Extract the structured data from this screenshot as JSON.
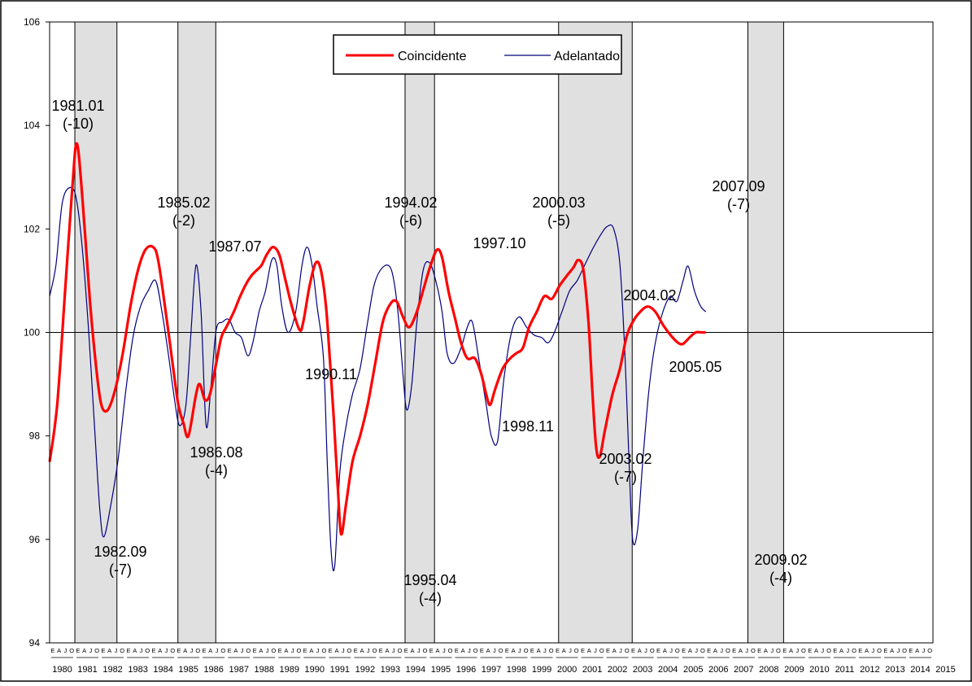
{
  "chart_data": {
    "type": "line",
    "title": "",
    "xlabel": "",
    "ylabel": "",
    "ylim": [
      94,
      106
    ],
    "yticks": [
      94,
      96,
      98,
      100,
      102,
      104,
      106
    ],
    "xlim": [
      1980.0,
      2015.0
    ],
    "years": [
      "1980",
      "1981",
      "1982",
      "1983",
      "1984",
      "1985",
      "1986",
      "1987",
      "1988",
      "1989",
      "1990",
      "1991",
      "1992",
      "1993",
      "1994",
      "1995",
      "1996",
      "1997",
      "1998",
      "1999",
      "2000",
      "2001",
      "2002",
      "2003",
      "2004",
      "2005",
      "2006",
      "2007",
      "2008",
      "2009",
      "2010",
      "2011",
      "2012",
      "2013",
      "2014",
      "2015"
    ],
    "quarter_letters": [
      "E",
      "A",
      "J",
      "O"
    ],
    "reference_line": 100,
    "recession_bands": [
      [
        1981.0,
        1982.667
      ],
      [
        1985.083,
        1986.583
      ],
      [
        1994.083,
        1995.25
      ],
      [
        2000.167,
        2003.083
      ],
      [
        2007.667,
        2009.083
      ]
    ],
    "legend": {
      "position": "top-center",
      "entries": [
        "Coincidente",
        "Adelantado"
      ]
    },
    "series": [
      {
        "name": "Coincidente",
        "color": "#ff0000",
        "points": [
          [
            1980.0,
            97.5
          ],
          [
            1980.3,
            98.6
          ],
          [
            1980.6,
            100.7
          ],
          [
            1980.9,
            102.8
          ],
          [
            1981.08,
            103.65
          ],
          [
            1981.3,
            102.6
          ],
          [
            1981.6,
            100.6
          ],
          [
            1981.85,
            99.3
          ],
          [
            1982.05,
            98.6
          ],
          [
            1982.3,
            98.5
          ],
          [
            1982.6,
            98.9
          ],
          [
            1982.9,
            99.6
          ],
          [
            1983.2,
            100.5
          ],
          [
            1983.5,
            101.2
          ],
          [
            1983.8,
            101.6
          ],
          [
            1984.1,
            101.65
          ],
          [
            1984.3,
            101.4
          ],
          [
            1984.6,
            100.4
          ],
          [
            1984.9,
            99.3
          ],
          [
            1985.1,
            98.6
          ],
          [
            1985.3,
            98.25
          ],
          [
            1985.5,
            98.0
          ],
          [
            1985.8,
            98.8
          ],
          [
            1985.95,
            99.0
          ],
          [
            1986.15,
            98.7
          ],
          [
            1986.35,
            98.8
          ],
          [
            1986.6,
            99.4
          ],
          [
            1986.8,
            99.9
          ],
          [
            1987.0,
            100.1
          ],
          [
            1987.3,
            100.4
          ],
          [
            1987.55,
            100.7
          ],
          [
            1987.8,
            100.95
          ],
          [
            1988.0,
            101.1
          ],
          [
            1988.2,
            101.2
          ],
          [
            1988.4,
            101.3
          ],
          [
            1988.6,
            101.5
          ],
          [
            1988.85,
            101.65
          ],
          [
            1989.1,
            101.5
          ],
          [
            1989.35,
            101.0
          ],
          [
            1989.6,
            100.5
          ],
          [
            1989.9,
            100.05
          ],
          [
            1990.05,
            100.2
          ],
          [
            1990.3,
            100.9
          ],
          [
            1990.55,
            101.35
          ],
          [
            1990.75,
            101.2
          ],
          [
            1990.95,
            100.5
          ],
          [
            1991.1,
            99.5
          ],
          [
            1991.25,
            98.4
          ],
          [
            1991.42,
            97.0
          ],
          [
            1991.55,
            96.1
          ],
          [
            1991.75,
            96.7
          ],
          [
            1992.0,
            97.5
          ],
          [
            1992.3,
            98.0
          ],
          [
            1992.6,
            98.6
          ],
          [
            1992.9,
            99.4
          ],
          [
            1993.2,
            100.2
          ],
          [
            1993.5,
            100.55
          ],
          [
            1993.75,
            100.6
          ],
          [
            1994.0,
            100.3
          ],
          [
            1994.25,
            100.1
          ],
          [
            1994.55,
            100.4
          ],
          [
            1994.85,
            100.9
          ],
          [
            1995.1,
            101.3
          ],
          [
            1995.35,
            101.6
          ],
          [
            1995.55,
            101.45
          ],
          [
            1995.8,
            100.8
          ],
          [
            1996.05,
            100.3
          ],
          [
            1996.3,
            99.8
          ],
          [
            1996.55,
            99.5
          ],
          [
            1996.85,
            99.5
          ],
          [
            1997.1,
            99.2
          ],
          [
            1997.3,
            98.8
          ],
          [
            1997.45,
            98.6
          ],
          [
            1997.65,
            98.9
          ],
          [
            1997.95,
            99.3
          ],
          [
            1998.25,
            99.5
          ],
          [
            1998.5,
            99.6
          ],
          [
            1998.75,
            99.7
          ],
          [
            1999.0,
            100.1
          ],
          [
            1999.3,
            100.4
          ],
          [
            1999.6,
            100.7
          ],
          [
            1999.9,
            100.65
          ],
          [
            2000.2,
            100.9
          ],
          [
            2000.5,
            101.1
          ],
          [
            2000.75,
            101.25
          ],
          [
            2000.95,
            101.4
          ],
          [
            2001.15,
            101.2
          ],
          [
            2001.35,
            100.2
          ],
          [
            2001.5,
            98.9
          ],
          [
            2001.65,
            97.8
          ],
          [
            2001.8,
            97.6
          ],
          [
            2002.0,
            98.1
          ],
          [
            2002.3,
            98.8
          ],
          [
            2002.6,
            99.3
          ],
          [
            2002.85,
            99.9
          ],
          [
            2003.1,
            100.2
          ],
          [
            2003.4,
            100.4
          ],
          [
            2003.7,
            100.5
          ],
          [
            2004.0,
            100.4
          ],
          [
            2004.3,
            100.15
          ],
          [
            2004.6,
            99.95
          ],
          [
            2004.9,
            99.8
          ],
          [
            2005.1,
            99.78
          ],
          [
            2005.35,
            99.9
          ],
          [
            2005.6,
            100.0
          ],
          [
            2005.85,
            100.0
          ],
          [
            2006.0,
            100.0
          ]
        ]
      },
      {
        "name": "Adelantado",
        "color": "#000080",
        "points": [
          [
            1980.0,
            100.7
          ],
          [
            1980.25,
            101.3
          ],
          [
            1980.5,
            102.5
          ],
          [
            1980.8,
            102.8
          ],
          [
            1981.05,
            102.6
          ],
          [
            1981.3,
            101.6
          ],
          [
            1981.55,
            100.0
          ],
          [
            1981.8,
            98.0
          ],
          [
            1982.0,
            96.5
          ],
          [
            1982.15,
            96.05
          ],
          [
            1982.4,
            96.6
          ],
          [
            1982.7,
            97.5
          ],
          [
            1983.0,
            98.8
          ],
          [
            1983.3,
            99.9
          ],
          [
            1983.6,
            100.5
          ],
          [
            1983.9,
            100.8
          ],
          [
            1984.2,
            101.0
          ],
          [
            1984.45,
            100.4
          ],
          [
            1984.7,
            99.6
          ],
          [
            1984.95,
            98.7
          ],
          [
            1985.15,
            98.2
          ],
          [
            1985.4,
            98.6
          ],
          [
            1985.6,
            100.0
          ],
          [
            1985.8,
            101.3
          ],
          [
            1986.0,
            100.4
          ],
          [
            1986.2,
            98.2
          ],
          [
            1986.4,
            99.0
          ],
          [
            1986.6,
            100.05
          ],
          [
            1986.85,
            100.2
          ],
          [
            1987.1,
            100.25
          ],
          [
            1987.35,
            100.0
          ],
          [
            1987.6,
            99.9
          ],
          [
            1987.85,
            99.55
          ],
          [
            1988.05,
            99.8
          ],
          [
            1988.3,
            100.4
          ],
          [
            1988.55,
            100.8
          ],
          [
            1988.8,
            101.4
          ],
          [
            1989.0,
            101.3
          ],
          [
            1989.2,
            100.5
          ],
          [
            1989.45,
            100.0
          ],
          [
            1989.75,
            100.4
          ],
          [
            1990.0,
            101.3
          ],
          [
            1990.2,
            101.65
          ],
          [
            1990.4,
            101.3
          ],
          [
            1990.6,
            100.5
          ],
          [
            1990.85,
            99.5
          ],
          [
            1991.0,
            97.5
          ],
          [
            1991.15,
            95.8
          ],
          [
            1991.3,
            95.5
          ],
          [
            1991.5,
            97.3
          ],
          [
            1991.75,
            98.2
          ],
          [
            1992.0,
            98.8
          ],
          [
            1992.3,
            99.3
          ],
          [
            1992.6,
            100.2
          ],
          [
            1992.85,
            100.9
          ],
          [
            1993.1,
            101.2
          ],
          [
            1993.4,
            101.3
          ],
          [
            1993.6,
            101.1
          ],
          [
            1993.8,
            100.4
          ],
          [
            1994.0,
            99.2
          ],
          [
            1994.15,
            98.5
          ],
          [
            1994.35,
            99.0
          ],
          [
            1994.55,
            100.2
          ],
          [
            1994.8,
            101.2
          ],
          [
            1995.05,
            101.35
          ],
          [
            1995.3,
            101.0
          ],
          [
            1995.55,
            100.4
          ],
          [
            1995.75,
            99.6
          ],
          [
            1996.0,
            99.4
          ],
          [
            1996.3,
            99.7
          ],
          [
            1996.55,
            100.1
          ],
          [
            1996.75,
            100.2
          ],
          [
            1997.0,
            99.5
          ],
          [
            1997.3,
            98.6
          ],
          [
            1997.5,
            98.0
          ],
          [
            1997.75,
            97.9
          ],
          [
            1998.0,
            99.1
          ],
          [
            1998.3,
            100.0
          ],
          [
            1998.6,
            100.3
          ],
          [
            1998.9,
            100.1
          ],
          [
            1999.2,
            99.95
          ],
          [
            1999.5,
            99.9
          ],
          [
            1999.75,
            99.8
          ],
          [
            2000.0,
            100.0
          ],
          [
            2000.3,
            100.4
          ],
          [
            2000.6,
            100.8
          ],
          [
            2000.9,
            101.0
          ],
          [
            2001.2,
            101.3
          ],
          [
            2001.5,
            101.6
          ],
          [
            2001.85,
            101.9
          ],
          [
            2002.1,
            102.05
          ],
          [
            2002.35,
            102.0
          ],
          [
            2002.6,
            101.3
          ],
          [
            2002.8,
            99.5
          ],
          [
            2002.95,
            97.6
          ],
          [
            2003.1,
            96.0
          ],
          [
            2003.3,
            96.2
          ],
          [
            2003.5,
            97.5
          ],
          [
            2003.75,
            98.9
          ],
          [
            2004.0,
            99.8
          ],
          [
            2004.3,
            100.4
          ],
          [
            2004.6,
            100.7
          ],
          [
            2004.85,
            100.6
          ],
          [
            2005.1,
            101.0
          ],
          [
            2005.3,
            101.28
          ],
          [
            2005.55,
            100.8
          ],
          [
            2005.8,
            100.5
          ],
          [
            2006.0,
            100.4
          ]
        ]
      }
    ],
    "annotations": [
      {
        "lines": [
          "1981.01",
          "(-10)"
        ]
      },
      {
        "lines": [
          "1982.09",
          "(-7)"
        ]
      },
      {
        "lines": [
          "1985.02",
          "(-2)"
        ]
      },
      {
        "lines": [
          "1986.08",
          "(-4)"
        ]
      },
      {
        "lines": [
          "1987.07"
        ]
      },
      {
        "lines": [
          "1990.11"
        ]
      },
      {
        "lines": [
          "1994.02",
          "(-6)"
        ]
      },
      {
        "lines": [
          "1995.04",
          "(-4)"
        ]
      },
      {
        "lines": [
          "1997.10"
        ]
      },
      {
        "lines": [
          "1998.11"
        ]
      },
      {
        "lines": [
          "2000.03",
          "(-5)"
        ]
      },
      {
        "lines": [
          "2003.02",
          "(-7)"
        ]
      },
      {
        "lines": [
          "2004.02"
        ]
      },
      {
        "lines": [
          "2005.05"
        ]
      },
      {
        "lines": [
          "2007.09",
          "(-7)"
        ]
      },
      {
        "lines": [
          "2009.02",
          "(-4)"
        ]
      }
    ]
  }
}
